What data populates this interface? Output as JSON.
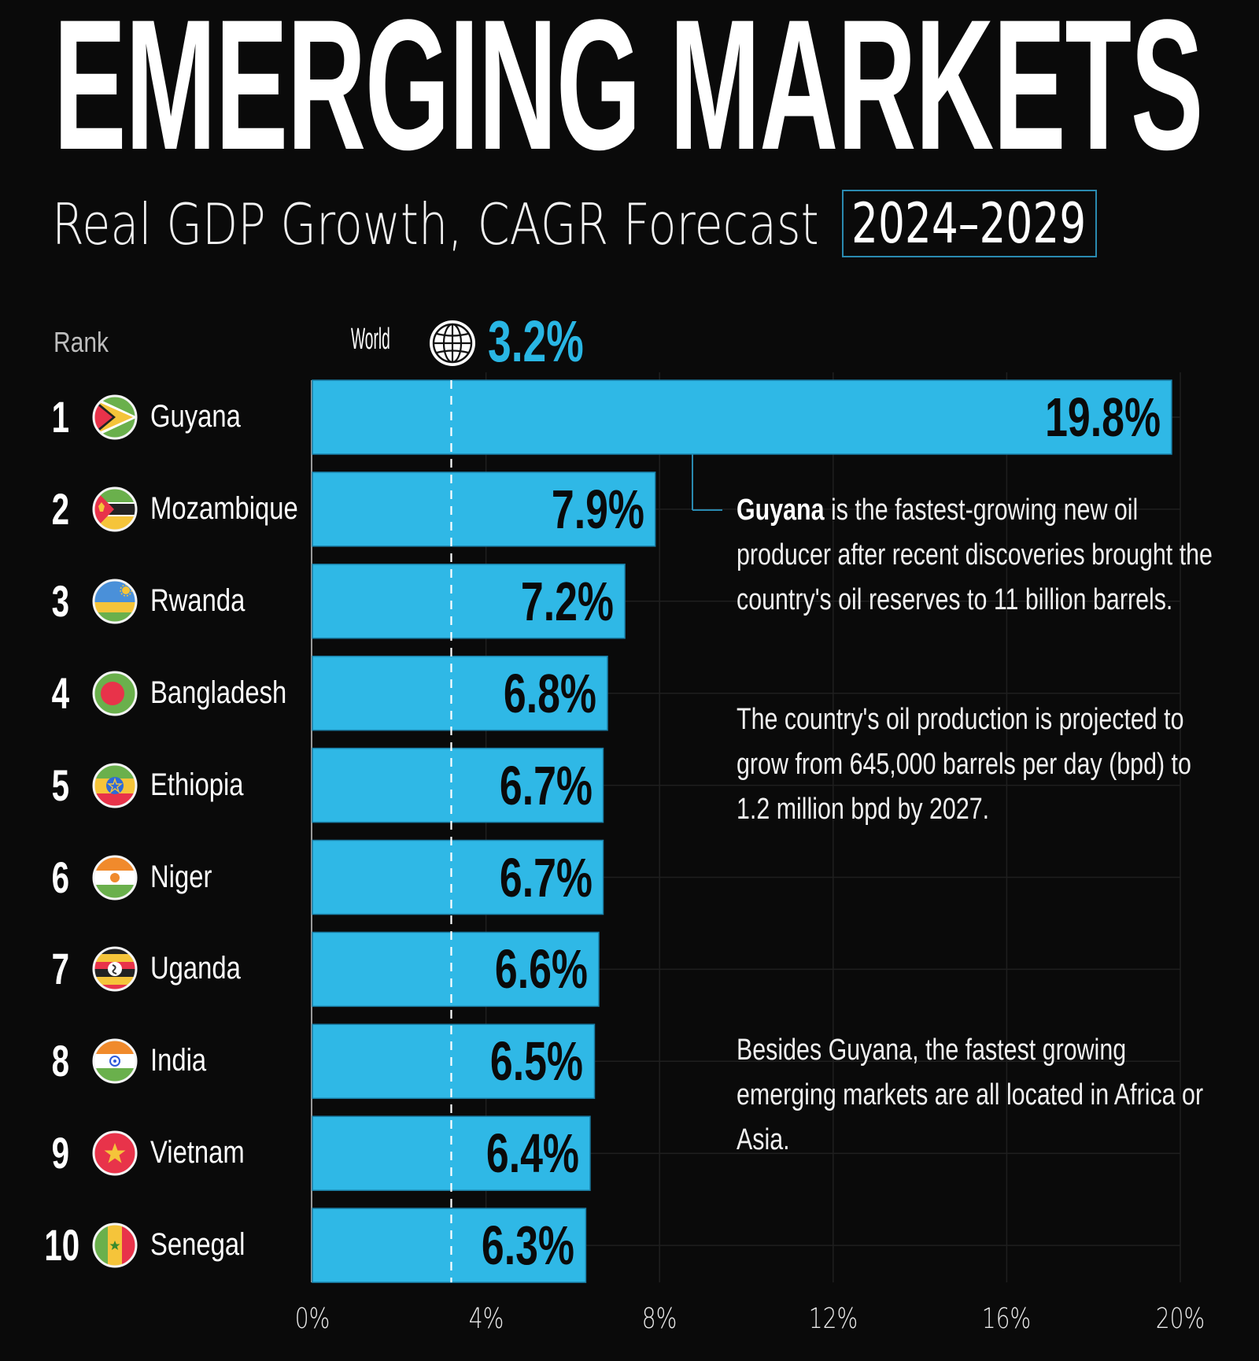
{
  "header": {
    "title": "EMERGING MARKETS",
    "subtitle": "Real GDP Growth, CAGR Forecast",
    "year_range": "2024–2029"
  },
  "labels": {
    "rank": "Rank",
    "world": "World",
    "world_icon": "globe-icon",
    "world_value": "3.2%"
  },
  "annotations": {
    "note1_bold": "Guyana",
    "note1_rest": " is the fastest-growing new oil producer after recent discoveries brought the country's oil reserves to 11 billion barrels.",
    "note2": "The country's oil production is projected to grow from 645,000 barrels per day (bpd) to 1.2 million bpd by 2027.",
    "note3": "Besides Guyana, the fastest growing emerging markets are all located in Africa or Asia."
  },
  "colors": {
    "background": "#0a0a0a",
    "bar": "#2fb8e6",
    "accent": "#29b6e4",
    "callout_line": "#2a8ab0"
  },
  "chart_data": {
    "type": "bar",
    "orientation": "horizontal",
    "title": "EMERGING MARKETS",
    "subtitle": "Real GDP Growth, CAGR Forecast 2024–2029",
    "xlabel": "",
    "ylabel": "Rank",
    "xlim": [
      0,
      20
    ],
    "x_ticks": [
      "0%",
      "4%",
      "8%",
      "12%",
      "16%",
      "20%"
    ],
    "x_tick_values": [
      0,
      4,
      8,
      12,
      16,
      20
    ],
    "grid": true,
    "reference_line": {
      "label": "World",
      "value": 3.2,
      "text": "3.2%"
    },
    "categories": [
      "Guyana",
      "Mozambique",
      "Rwanda",
      "Bangladesh",
      "Ethiopia",
      "Niger",
      "Uganda",
      "India",
      "Vietnam",
      "Senegal"
    ],
    "ranks": [
      "1",
      "2",
      "3",
      "4",
      "5",
      "6",
      "7",
      "8",
      "9",
      "10"
    ],
    "values": [
      19.8,
      7.9,
      7.2,
      6.8,
      6.7,
      6.7,
      6.6,
      6.5,
      6.4,
      6.3
    ],
    "value_labels": [
      "19.8%",
      "7.9%",
      "7.2%",
      "6.8%",
      "6.7%",
      "6.7%",
      "6.6%",
      "6.5%",
      "6.4%",
      "6.3%"
    ],
    "flags": [
      "guyana-flag-icon",
      "mozambique-flag-icon",
      "rwanda-flag-icon",
      "bangladesh-flag-icon",
      "ethiopia-flag-icon",
      "niger-flag-icon",
      "uganda-flag-icon",
      "india-flag-icon",
      "vietnam-flag-icon",
      "senegal-flag-icon"
    ]
  }
}
